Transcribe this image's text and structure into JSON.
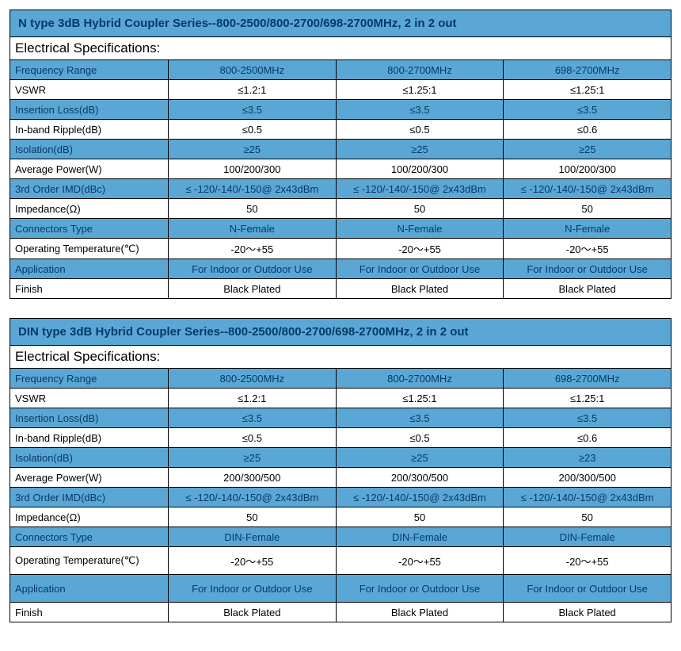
{
  "colors": {
    "header_bg": "#5aa7d6",
    "header_text": "#063a66",
    "border": "#000000",
    "alt_bg": "#ffffff"
  },
  "tables": [
    {
      "title": "N type 3dB Hybrid Coupler Series--800-2500/800-2700/698-2700MHz, 2 in 2 out",
      "spec_header": "Electrical Specifications:",
      "label_col_width": 200,
      "rows": [
        {
          "style": "blue",
          "label": "Frequency Range",
          "v1": "800-2500MHz",
          "v2": "800-2700MHz",
          "v3": "698-2700MHz"
        },
        {
          "style": "white",
          "label": "VSWR",
          "v1": "≤1.2:1",
          "v2": "≤1.25:1",
          "v3": "≤1.25:1"
        },
        {
          "style": "blue",
          "label": "Insertion Loss(dB)",
          "v1": "≤3.5",
          "v2": "≤3.5",
          "v3": "≤3.5"
        },
        {
          "style": "white",
          "label": "In-band Ripple(dB)",
          "v1": "≤0.5",
          "v2": "≤0.5",
          "v3": "≤0.6"
        },
        {
          "style": "blue",
          "label": "Isolation(dB)",
          "v1": "≥25",
          "v2": "≥25",
          "v3": "≥25"
        },
        {
          "style": "white",
          "label": "Average Power(W)",
          "v1": "100/200/300",
          "v2": "100/200/300",
          "v3": "100/200/300"
        },
        {
          "style": "blue",
          "label": "3rd Order IMD(dBc)",
          "v1": "≤ -120/-140/-150@ 2x43dBm",
          "v2": "≤ -120/-140/-150@ 2x43dBm",
          "v3": "≤ -120/-140/-150@ 2x43dBm"
        },
        {
          "style": "white",
          "label": "Impedance(Ω)",
          "v1": "50",
          "v2": "50",
          "v3": "50"
        },
        {
          "style": "blue",
          "label": "Connectors Type",
          "v1": "N-Female",
          "v2": "N-Female",
          "v3": "N-Female"
        },
        {
          "style": "white",
          "label": "Operating Temperature(℃)",
          "v1": "-20～+55",
          "v2": "-20～+55",
          "v3": "-20～+55"
        },
        {
          "style": "blue",
          "label": "Application",
          "v1": "For Indoor or Outdoor Use",
          "v2": "For Indoor or Outdoor Use",
          "v3": "For Indoor or Outdoor Use"
        },
        {
          "style": "white",
          "label": "Finish",
          "v1": "Black Plated",
          "v2": "Black Plated",
          "v3": "Black Plated"
        }
      ]
    },
    {
      "title": "DIN type 3dB Hybrid Coupler Series--800-2500/800-2700/698-2700MHz, 2 in 2 out",
      "spec_header": "Electrical Specifications:",
      "label_col_width": 200,
      "rows": [
        {
          "style": "blue",
          "label": "Frequency Range",
          "v1": "800-2500MHz",
          "v2": "800-2700MHz",
          "v3": "698-2700MHz"
        },
        {
          "style": "white",
          "label": "VSWR",
          "v1": "≤1.2:1",
          "v2": "≤1.25:1",
          "v3": "≤1.25:1"
        },
        {
          "style": "blue",
          "label": "Insertion Loss(dB)",
          "v1": "≤3.5",
          "v2": "≤3.5",
          "v3": "≤3.5"
        },
        {
          "style": "white",
          "label": "In-band Ripple(dB)",
          "v1": "≤0.5",
          "v2": "≤0.5",
          "v3": "≤0.6"
        },
        {
          "style": "blue",
          "label": "Isolation(dB)",
          "v1": "≥25",
          "v2": "≥25",
          "v3": "≥23"
        },
        {
          "style": "white",
          "label": "Average Power(W)",
          "v1": "200/300/500",
          "v2": "200/300/500",
          "v3": "200/300/500"
        },
        {
          "style": "blue",
          "label": "3rd Order IMD(dBc)",
          "v1": "≤ -120/-140/-150@ 2x43dBm",
          "v2": "≤ -120/-140/-150@ 2x43dBm",
          "v3": "≤ -120/-140/-150@ 2x43dBm"
        },
        {
          "style": "white",
          "label": "Impedance(Ω)",
          "v1": "50",
          "v2": "50",
          "v3": "50"
        },
        {
          "style": "blue",
          "label": "Connectors Type",
          "v1": "DIN-Female",
          "v2": "DIN-Female",
          "v3": "DIN-Female"
        },
        {
          "style": "white",
          "tall": true,
          "label": "Operating Temperature(℃)",
          "v1": "-20～+55",
          "v2": "-20～+55",
          "v3": "-20～+55"
        },
        {
          "style": "blue",
          "tall": true,
          "label": "Application",
          "v1": "For Indoor or Outdoor Use",
          "v2": "For Indoor or Outdoor Use",
          "v3": "For Indoor or Outdoor Use"
        },
        {
          "style": "white",
          "label": "Finish",
          "v1": "Black Plated",
          "v2": "Black Plated",
          "v3": "Black Plated"
        }
      ]
    }
  ]
}
